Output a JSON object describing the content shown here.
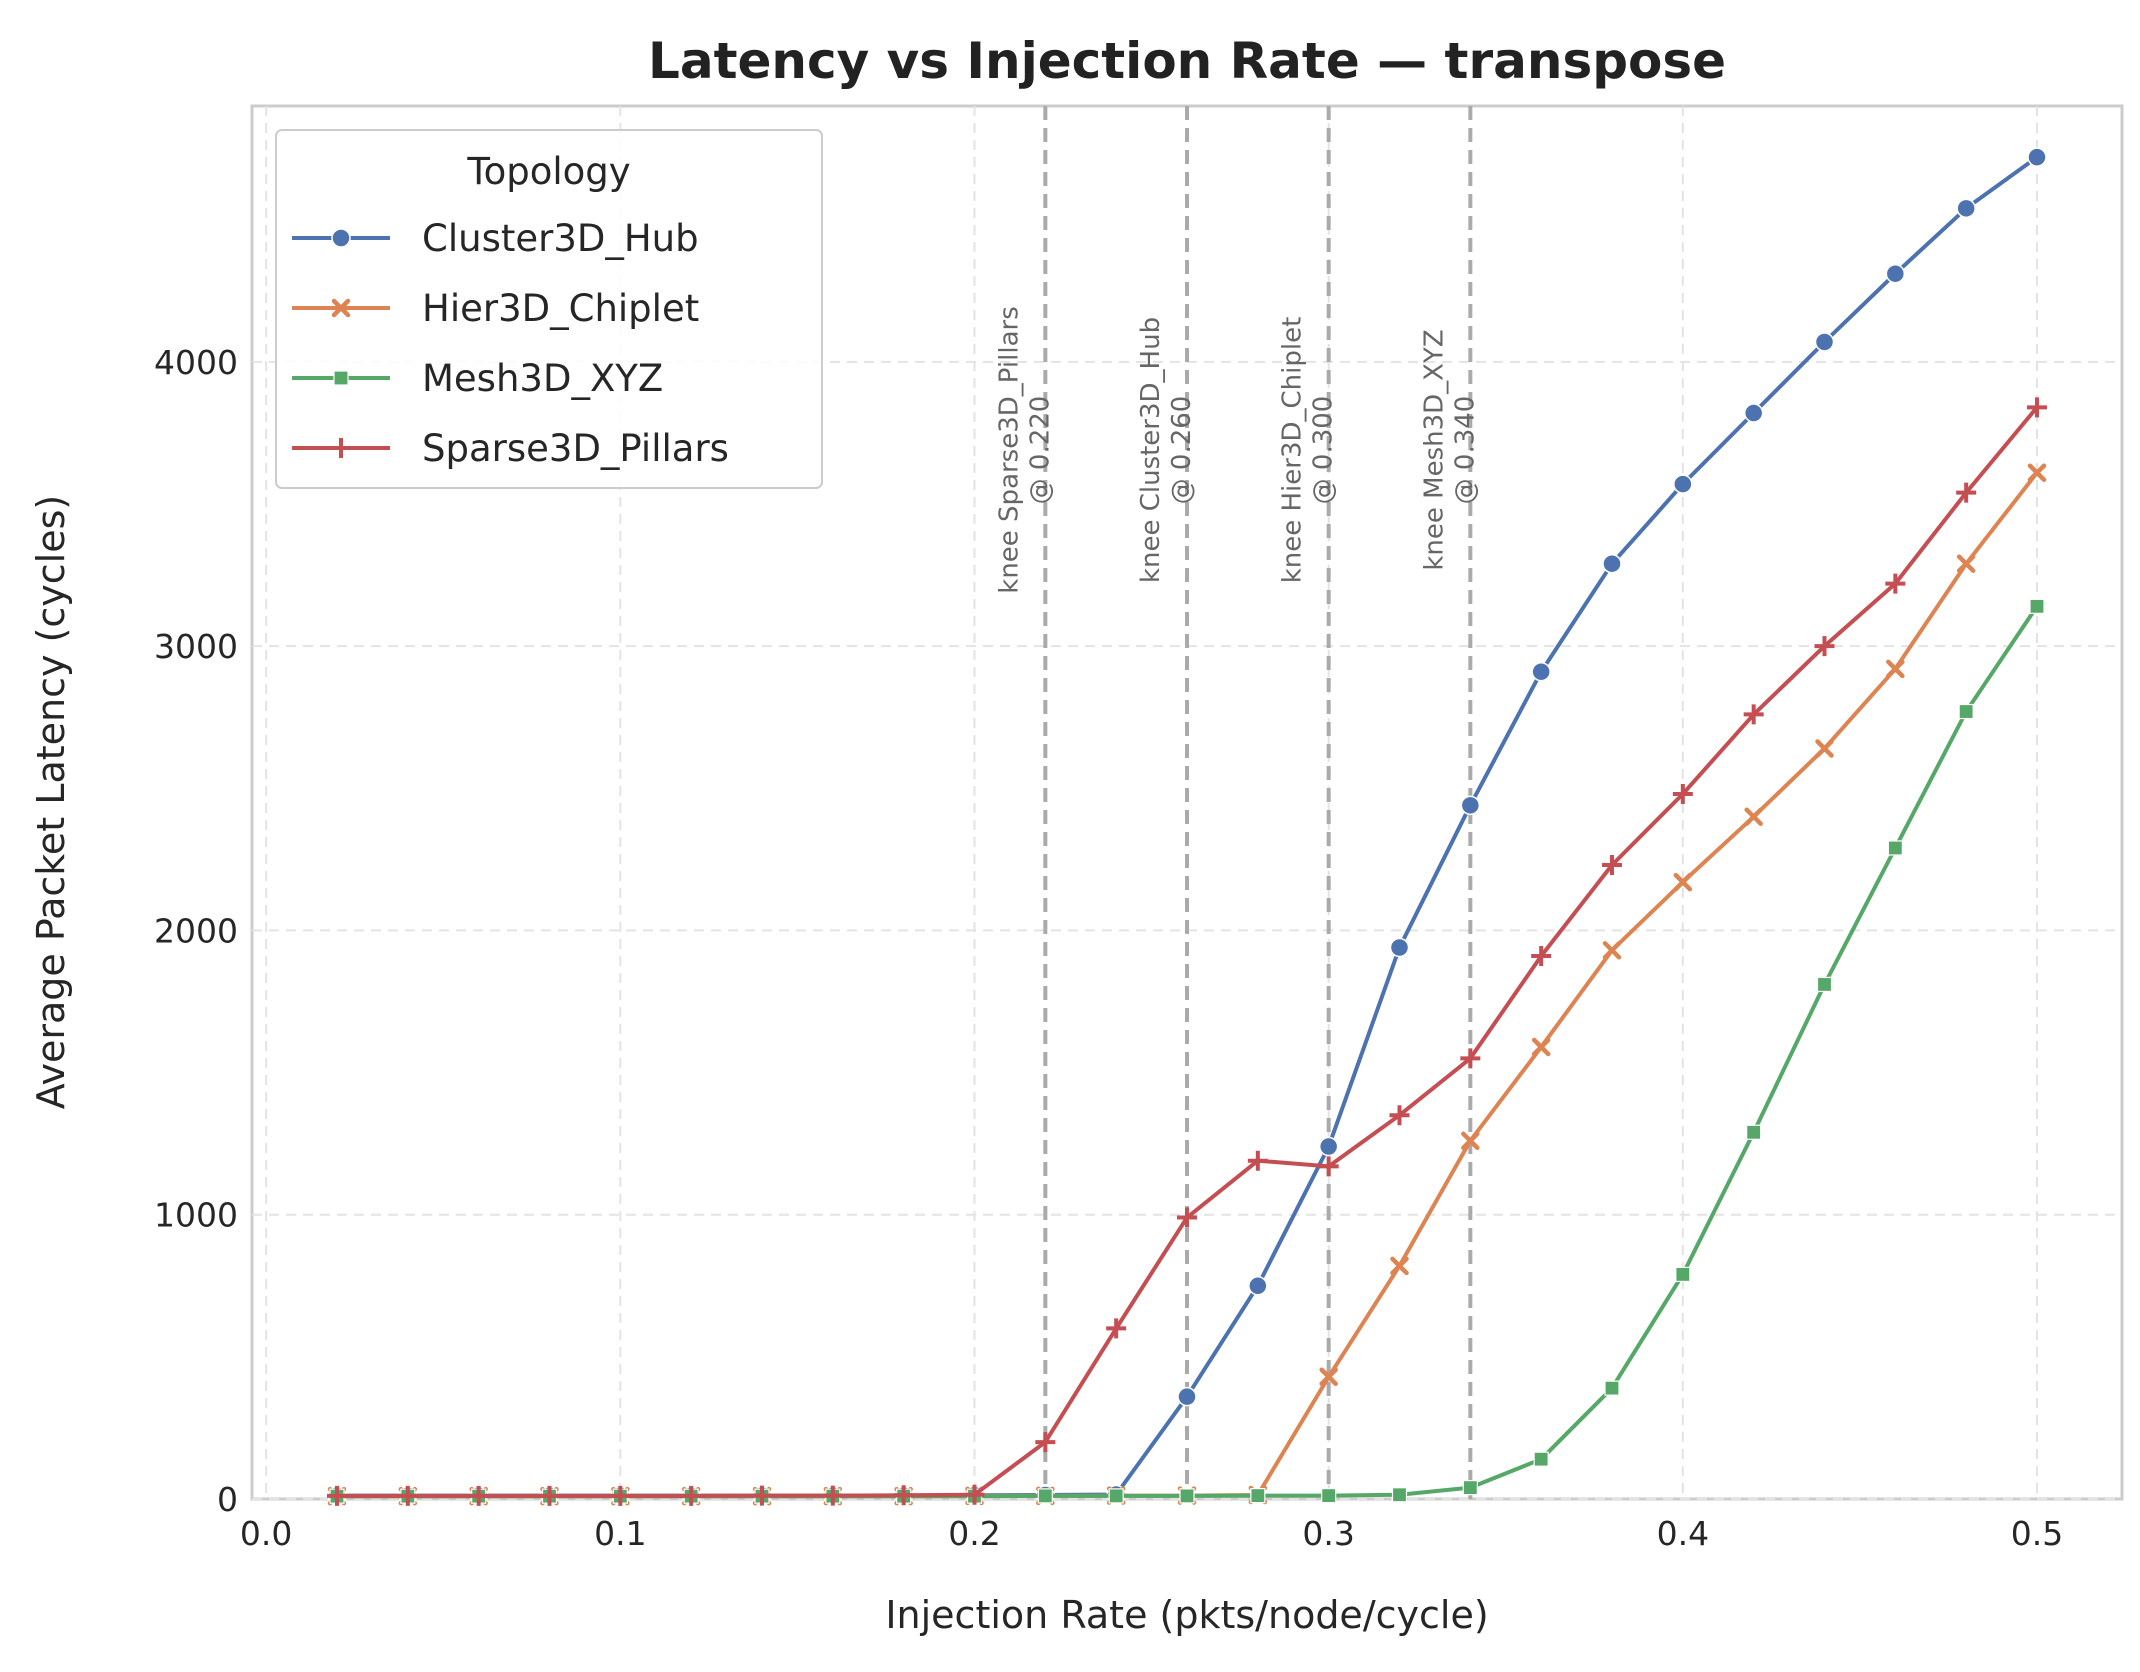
{
  "chart_data": {
    "type": "line",
    "title": "Latency vs Injection Rate — transpose",
    "xlabel": "Injection Rate (pkts/node/cycle)",
    "ylabel": "Average Packet Latency (cycles)",
    "xlim": [
      -0.004,
      0.524
    ],
    "ylim": [
      0,
      4900
    ],
    "x_ticks": [
      0.0,
      0.1,
      0.2,
      0.3,
      0.4,
      0.5
    ],
    "x_tick_labels": [
      "0.0",
      "0.1",
      "0.2",
      "0.3",
      "0.4",
      "0.5"
    ],
    "y_ticks": [
      0,
      1000,
      2000,
      3000,
      4000
    ],
    "y_tick_labels": [
      "0",
      "1000",
      "2000",
      "3000",
      "4000"
    ],
    "grid": true,
    "legend": {
      "title": "Topology",
      "placement": "top-left"
    },
    "series": [
      {
        "name": "Cluster3D_Hub",
        "color": "#4c72b0",
        "marker": "circle",
        "x": [
          0.02,
          0.04,
          0.06,
          0.08,
          0.1,
          0.12,
          0.14,
          0.16,
          0.18,
          0.2,
          0.22,
          0.24,
          0.26,
          0.28,
          0.3,
          0.32,
          0.34,
          0.36,
          0.38,
          0.4,
          0.42,
          0.44,
          0.46,
          0.48,
          0.5
        ],
        "y": [
          12,
          12,
          12,
          12,
          12,
          12,
          12,
          12,
          12,
          13,
          14,
          16,
          360,
          750,
          1240,
          1940,
          2440,
          2910,
          3290,
          3570,
          3820,
          4070,
          4310,
          4540,
          4720
        ]
      },
      {
        "name": "Hier3D_Chiplet",
        "color": "#dd8452",
        "marker": "x",
        "x": [
          0.02,
          0.04,
          0.06,
          0.08,
          0.1,
          0.12,
          0.14,
          0.16,
          0.18,
          0.2,
          0.22,
          0.24,
          0.26,
          0.28,
          0.3,
          0.32,
          0.34,
          0.36,
          0.38,
          0.4,
          0.42,
          0.44,
          0.46,
          0.48,
          0.5
        ],
        "y": [
          10,
          10,
          10,
          10,
          10,
          10,
          10,
          10,
          10,
          11,
          11,
          12,
          12,
          14,
          430,
          820,
          1260,
          1590,
          1930,
          2170,
          2400,
          2640,
          2920,
          3290,
          3610
        ]
      },
      {
        "name": "Mesh3D_XYZ",
        "color": "#55a868",
        "marker": "square",
        "x": [
          0.02,
          0.04,
          0.06,
          0.08,
          0.1,
          0.12,
          0.14,
          0.16,
          0.18,
          0.2,
          0.22,
          0.24,
          0.26,
          0.28,
          0.3,
          0.32,
          0.34,
          0.36,
          0.38,
          0.4,
          0.42,
          0.44,
          0.46,
          0.48,
          0.5
        ],
        "y": [
          10,
          10,
          10,
          10,
          10,
          10,
          10,
          10,
          10,
          10,
          11,
          11,
          11,
          12,
          12,
          15,
          40,
          140,
          390,
          790,
          1290,
          1810,
          2290,
          2770,
          3140
        ]
      },
      {
        "name": "Sparse3D_Pillars",
        "color": "#c44e52",
        "marker": "plus",
        "x": [
          0.02,
          0.04,
          0.06,
          0.08,
          0.1,
          0.12,
          0.14,
          0.16,
          0.18,
          0.2,
          0.22,
          0.24,
          0.26,
          0.28,
          0.3,
          0.32,
          0.34,
          0.36,
          0.38,
          0.4,
          0.42,
          0.44,
          0.46,
          0.48,
          0.5
        ],
        "y": [
          11,
          11,
          11,
          11,
          11,
          11,
          12,
          12,
          13,
          15,
          200,
          600,
          990,
          1190,
          1170,
          1350,
          1550,
          1910,
          2230,
          2480,
          2760,
          3000,
          3220,
          3540,
          3840
        ]
      }
    ],
    "knee_lines": [
      {
        "x": 0.22,
        "line1": "knee Sparse3D_Pillars",
        "line2": "@ 0.220"
      },
      {
        "x": 0.26,
        "line1": "knee Cluster3D_Hub",
        "line2": "@ 0.260"
      },
      {
        "x": 0.3,
        "line1": "knee Hier3D_Chiplet",
        "line2": "@ 0.300"
      },
      {
        "x": 0.34,
        "line1": "knee Mesh3D_XYZ",
        "line2": "@ 0.340"
      }
    ]
  }
}
